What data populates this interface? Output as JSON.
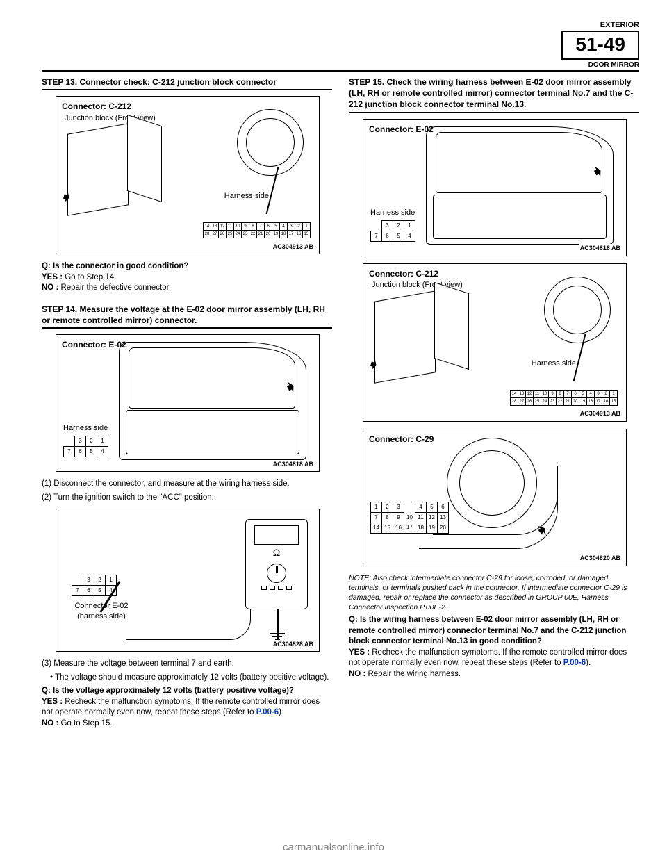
{
  "header": {
    "line1": "EXTERIOR",
    "page_num": "51-49",
    "line2": "DOOR MIRROR"
  },
  "figures": {
    "jb_c212": {
      "title": "Connector: C-212",
      "sub": "Junction block (Front view)",
      "harness": "Harness side",
      "code": "AC304913 AB"
    },
    "e02": {
      "title": "Connector: E-02",
      "harness": "Harness side",
      "code": "AC304818 AB"
    },
    "meter": {
      "caption1": "Connector E-02",
      "caption2": "(harness side)",
      "code": "AC304828 AB"
    },
    "c29": {
      "title": "Connector: C-29",
      "code": "AC304820 AB"
    }
  },
  "pins": {
    "c212_row1": [
      "14",
      "13",
      "12",
      "11",
      "10",
      "9",
      "8",
      "7",
      "6",
      "5",
      "4",
      "3",
      "2",
      "1"
    ],
    "c212_row2": [
      "28",
      "27",
      "26",
      "25",
      "24",
      "23",
      "22",
      "21",
      "20",
      "19",
      "18",
      "17",
      "16",
      "15"
    ],
    "e02_row1": [
      "3",
      "2",
      "1"
    ],
    "e02_row2": [
      "7",
      "6",
      "5",
      "4"
    ],
    "c29_r1": [
      "1",
      "2",
      "3",
      "",
      "4",
      "5",
      "6"
    ],
    "c29_r2": [
      "7",
      "8",
      "9",
      "10",
      "11",
      "12",
      "13"
    ],
    "c29_r3": [
      "14",
      "15",
      "16",
      "17",
      "18",
      "19",
      "20"
    ]
  },
  "left": {
    "step13": {
      "title": "STEP 13. Connector check: C-212 junction block connector",
      "q": "Q: Is the connector in good condition?",
      "yes": "YES : Go to Step 14.",
      "no": "NO : Repair the defective connector."
    },
    "step14": {
      "title": "STEP 14. Measure the voltage at the E-02 door mirror assembly (LH, RH or remote controlled mirror) connector.",
      "b1": "(1) Disconnect the connector, and measure at the wiring harness side.",
      "b2": "(2) Turn the ignition switch to the \"ACC\" position.",
      "b3": "(3) Measure the voltage between terminal 7 and earth.",
      "bv": "• The voltage should measure approximately 12 volts (battery positive voltage).",
      "q": "Q: Is the voltage approximately 12 volts (battery positive voltage)?",
      "yes": "YES : Recheck the malfunction symptoms. If the remote controlled mirror does not operate normally even now, repeat these steps (Refer to ",
      "yes_link": "P.00-6",
      "yes_end": ").",
      "no": "NO : Go to Step 15."
    }
  },
  "right": {
    "step15": {
      "title": "STEP 15. Check the wiring harness between E-02 door mirror assembly (LH, RH or remote controlled mirror) connector terminal No.7 and the C-212 junction block connector terminal No.13.",
      "note": "NOTE: Also check intermediate connector C-29 for loose, corroded, or damaged terminals, or terminals pushed back in the connector. If intermediate connector C-29 is damaged, repair or replace the connector as described in GROUP 00E, Harness Connector Inspection ",
      "note_link": "P.00E-2",
      "note_end": ".",
      "q": "Q: Is the wiring harness between E-02 door mirror assembly (LH, RH or remote controlled mirror) connector terminal No.7 and the C-212 junction block connector terminal No.13 in good condition?",
      "yes": "YES : Recheck the malfunction symptoms. If the remote controlled mirror does not operate normally even now, repeat these steps (Refer to ",
      "yes_link": "P.00-6",
      "yes_end": ").",
      "no": "NO : Repair the wiring harness."
    }
  },
  "footer": "carmanualsonline.info"
}
